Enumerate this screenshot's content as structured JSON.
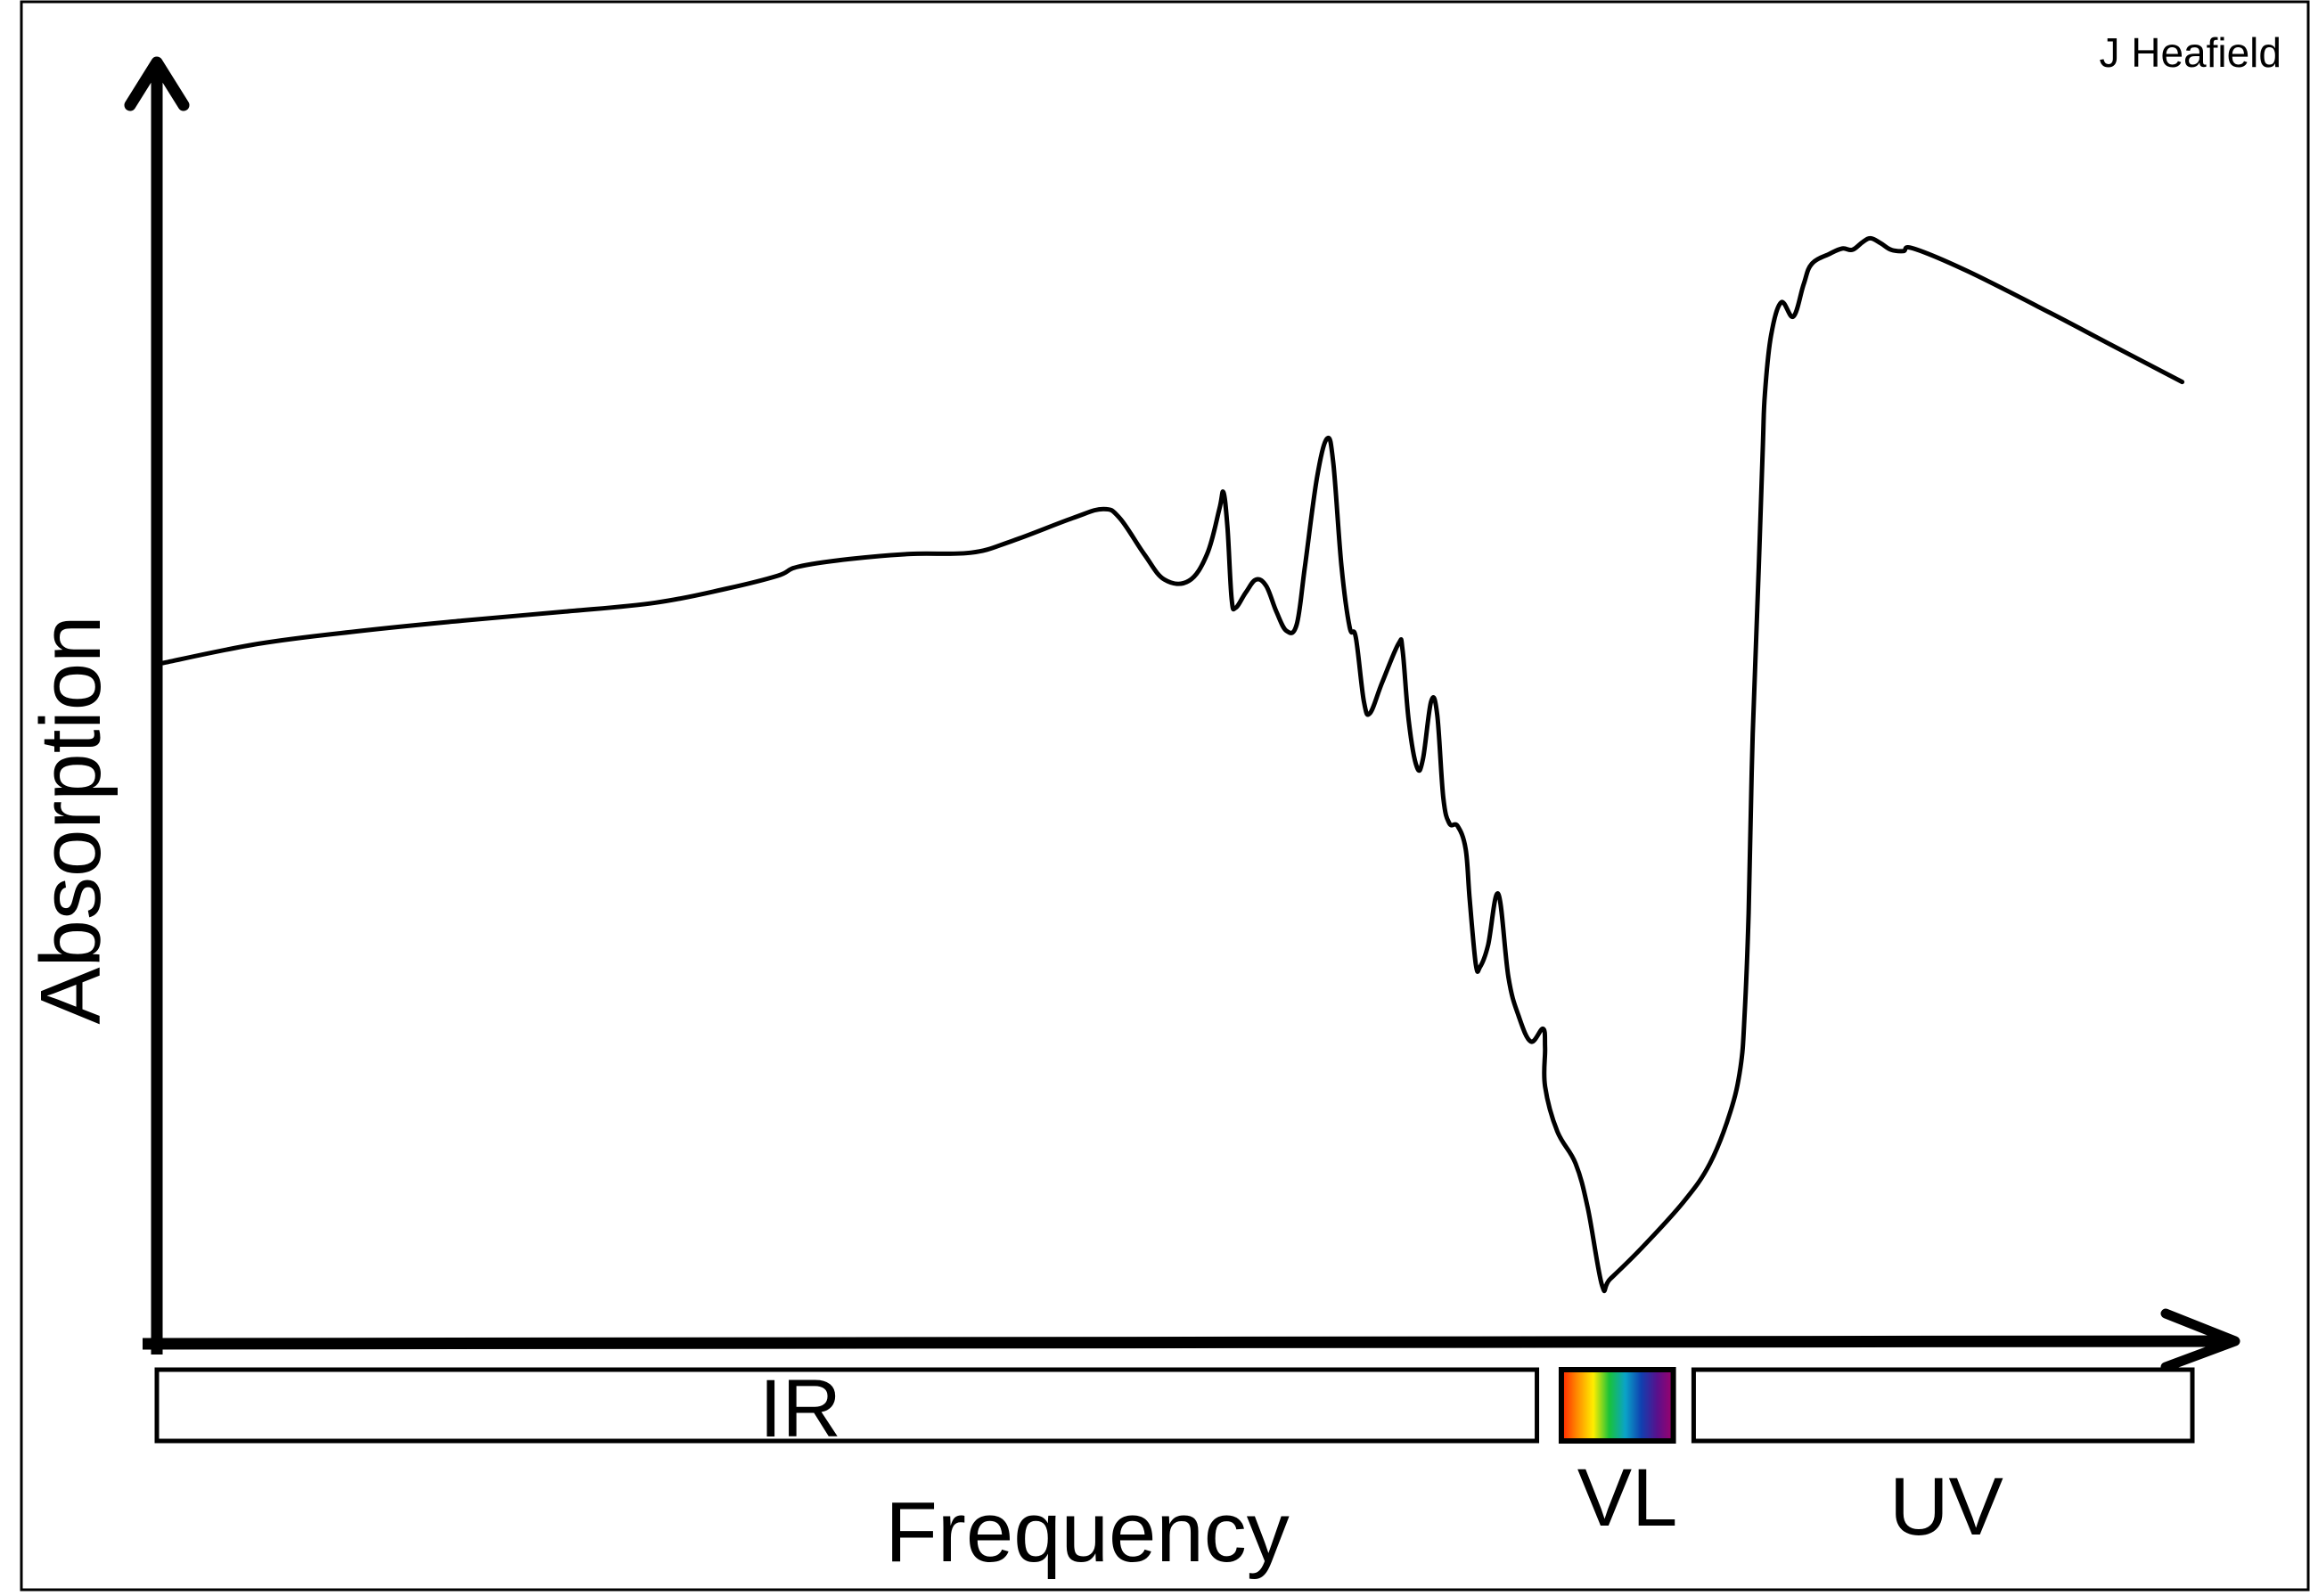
{
  "chart_data": {
    "type": "line",
    "title": "",
    "credit": "J Heafield",
    "xlabel": "Frequency",
    "ylabel": "Absorption",
    "grid": false,
    "legend": "none",
    "xlim": [
      0,
      100
    ],
    "ylim": [
      0,
      100
    ],
    "colors": {
      "line": "#000000",
      "axes": "#000000",
      "background": "#ffffff",
      "band_border": "#000000",
      "visible_spectrum": [
        "#ff2000",
        "#ff8c00",
        "#ffee00",
        "#19c23a",
        "#0aa3c8",
        "#1040b0",
        "#5a108c",
        "#a0006a"
      ]
    },
    "bands": [
      {
        "name": "IR",
        "label": "IR",
        "x_start": 0,
        "x_end": 67.8,
        "fill": "none"
      },
      {
        "name": "VL",
        "label": "VL",
        "x_start": 69,
        "x_end": 74.5,
        "fill": "visible-spectrum"
      },
      {
        "name": "UV",
        "label": "UV",
        "x_start": 75.5,
        "x_end": 100,
        "fill": "none"
      }
    ],
    "series": [
      {
        "points": [
          [
            0.3,
            52.5
          ],
          [
            5,
            54.0
          ],
          [
            10,
            55.0
          ],
          [
            15,
            55.8
          ],
          [
            20,
            56.5
          ],
          [
            24.5,
            57.2
          ],
          [
            28,
            58.3
          ],
          [
            30.5,
            59.3
          ],
          [
            31.5,
            60.0
          ],
          [
            34,
            60.6
          ],
          [
            37,
            61.0
          ],
          [
            40,
            61.1
          ],
          [
            42,
            62.0
          ],
          [
            45,
            63.8
          ],
          [
            46.5,
            64.5
          ],
          [
            47.3,
            63.8
          ],
          [
            48.5,
            61.0
          ],
          [
            49.5,
            59.0
          ],
          [
            50.7,
            58.9
          ],
          [
            51.6,
            61.0
          ],
          [
            52.2,
            64.5
          ],
          [
            52.4,
            65.8
          ],
          [
            52.6,
            63.0
          ],
          [
            52.8,
            57.5
          ],
          [
            53,
            56.8
          ],
          [
            53.5,
            58.0
          ],
          [
            54.0,
            59.0
          ],
          [
            54.5,
            58.5
          ],
          [
            55.0,
            56.5
          ],
          [
            55.5,
            55.0
          ],
          [
            56.0,
            55.5
          ],
          [
            56.4,
            60.0
          ],
          [
            57.0,
            67.0
          ],
          [
            57.5,
            70.0
          ],
          [
            57.8,
            68.0
          ],
          [
            58.2,
            60.0
          ],
          [
            58.6,
            55.3
          ],
          [
            58.9,
            54.5
          ],
          [
            59.3,
            49.5
          ],
          [
            59.6,
            48.6
          ],
          [
            60.2,
            51.0
          ],
          [
            61.0,
            54.0
          ],
          [
            61.2,
            53.5
          ],
          [
            61.5,
            48.0
          ],
          [
            61.9,
            44.4
          ],
          [
            62.2,
            45.0
          ],
          [
            62.6,
            49.5
          ],
          [
            62.9,
            48.5
          ],
          [
            63.2,
            42.0
          ],
          [
            63.5,
            40.0
          ],
          [
            63.9,
            39.8
          ],
          [
            64.3,
            38.0
          ],
          [
            64.5,
            34.0
          ],
          [
            64.8,
            29.0
          ],
          [
            65.0,
            28.8
          ],
          [
            65.4,
            30.5
          ],
          [
            65.9,
            34.5
          ],
          [
            66.4,
            28.0
          ],
          [
            66.9,
            25.0
          ],
          [
            67.5,
            23.0
          ],
          [
            68.1,
            24.0
          ],
          [
            68.2,
            22.5
          ],
          [
            68.2,
            19.5
          ],
          [
            68.8,
            16.0
          ],
          [
            69.7,
            13.5
          ],
          [
            70.3,
            10.0
          ],
          [
            71.0,
            4.0
          ],
          [
            71.4,
            4.5
          ],
          [
            73.0,
            7.0
          ],
          [
            75.0,
            10.5
          ],
          [
            76.3,
            13.5
          ],
          [
            77.3,
            17.5
          ],
          [
            77.8,
            21.0
          ],
          [
            78.0,
            25.0
          ],
          [
            78.2,
            33.0
          ],
          [
            78.4,
            47.0
          ],
          [
            78.7,
            60.0
          ],
          [
            78.9,
            69.5
          ],
          [
            79.0,
            73.5
          ],
          [
            79.3,
            78.0
          ],
          [
            79.8,
            80.6
          ],
          [
            80.4,
            79.5
          ],
          [
            80.9,
            82.0
          ],
          [
            81.3,
            83.6
          ],
          [
            82.2,
            84.4
          ],
          [
            82.8,
            84.8
          ],
          [
            83.3,
            84.7
          ],
          [
            83.8,
            85.3
          ],
          [
            84.2,
            85.6
          ],
          [
            84.7,
            85.2
          ],
          [
            85.2,
            84.7
          ],
          [
            85.8,
            84.6
          ],
          [
            86.3,
            84.8
          ],
          [
            89.0,
            83.0
          ],
          [
            93.0,
            79.8
          ],
          [
            96.0,
            77.3
          ],
          [
            99.5,
            74.4
          ]
        ]
      }
    ]
  }
}
